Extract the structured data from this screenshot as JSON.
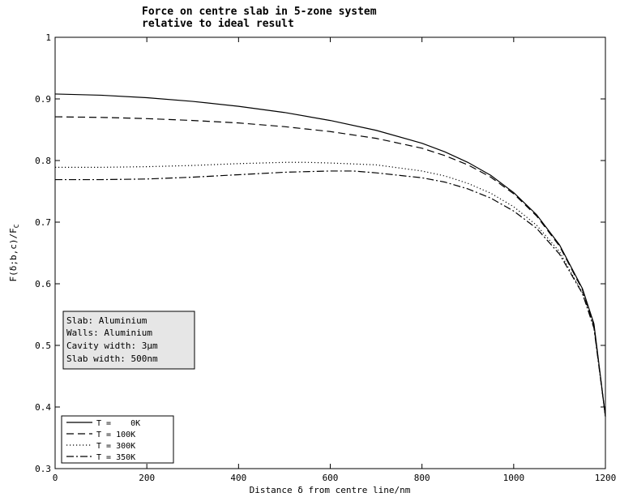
{
  "chart_data": {
    "type": "line",
    "title_lines": [
      "Force on centre slab in 5-zone system",
      "relative to ideal result"
    ],
    "xlabel": "Distance δ from centre line/nm",
    "ylabel": "F(δ;b,c)/F",
    "ylabel_sub": "C",
    "xlim": [
      0,
      1200
    ],
    "ylim": [
      0.3,
      1
    ],
    "xticks": [
      0,
      200,
      400,
      600,
      800,
      1000,
      1200
    ],
    "yticks": [
      0.3,
      0.4,
      0.5,
      0.6,
      0.7,
      0.8,
      0.9,
      1
    ],
    "xtick_labels": [
      "0",
      "200",
      "400",
      "600",
      "800",
      "1000",
      "1200"
    ],
    "ytick_labels": [
      "0.3",
      "0.4",
      "0.5",
      "0.6",
      "0.7",
      "0.8",
      "0.9",
      "1"
    ],
    "grid": false,
    "legend_position": "bottom-left",
    "series": [
      {
        "name": "T =    0K",
        "style": "solid",
        "x": [
          0,
          100,
          200,
          300,
          400,
          500,
          600,
          700,
          800,
          850,
          900,
          950,
          1000,
          1050,
          1100,
          1150,
          1175,
          1200
        ],
        "y": [
          0.908,
          0.906,
          0.902,
          0.896,
          0.888,
          0.878,
          0.865,
          0.849,
          0.828,
          0.814,
          0.797,
          0.776,
          0.748,
          0.712,
          0.663,
          0.592,
          0.535,
          0.385
        ]
      },
      {
        "name": "T = 100K",
        "style": "dashed",
        "x": [
          0,
          100,
          200,
          300,
          400,
          500,
          600,
          700,
          800,
          850,
          900,
          950,
          1000,
          1050,
          1100,
          1150,
          1175,
          1200
        ],
        "y": [
          0.871,
          0.87,
          0.868,
          0.865,
          0.861,
          0.855,
          0.847,
          0.836,
          0.82,
          0.808,
          0.793,
          0.773,
          0.746,
          0.71,
          0.661,
          0.59,
          0.532,
          0.385
        ]
      },
      {
        "name": "T = 300K",
        "style": "dotted",
        "x": [
          0,
          100,
          200,
          300,
          400,
          500,
          550,
          600,
          700,
          800,
          850,
          900,
          950,
          1000,
          1050,
          1100,
          1150,
          1175,
          1200
        ],
        "y": [
          0.789,
          0.789,
          0.79,
          0.792,
          0.795,
          0.797,
          0.797,
          0.796,
          0.793,
          0.783,
          0.775,
          0.763,
          0.747,
          0.725,
          0.695,
          0.652,
          0.585,
          0.53,
          0.385
        ]
      },
      {
        "name": "T = 350K",
        "style": "dashdot",
        "x": [
          0,
          100,
          200,
          300,
          400,
          500,
          600,
          650,
          700,
          800,
          850,
          900,
          950,
          1000,
          1050,
          1100,
          1150,
          1175,
          1200
        ],
        "y": [
          0.769,
          0.769,
          0.77,
          0.773,
          0.777,
          0.781,
          0.783,
          0.783,
          0.78,
          0.772,
          0.765,
          0.754,
          0.739,
          0.718,
          0.69,
          0.648,
          0.584,
          0.528,
          0.385
        ]
      }
    ],
    "annotation_lines": [
      "Slab:  Aluminium",
      "Walls:  Aluminium",
      "Cavity width:  3μm",
      "Slab width:  500nm"
    ]
  }
}
